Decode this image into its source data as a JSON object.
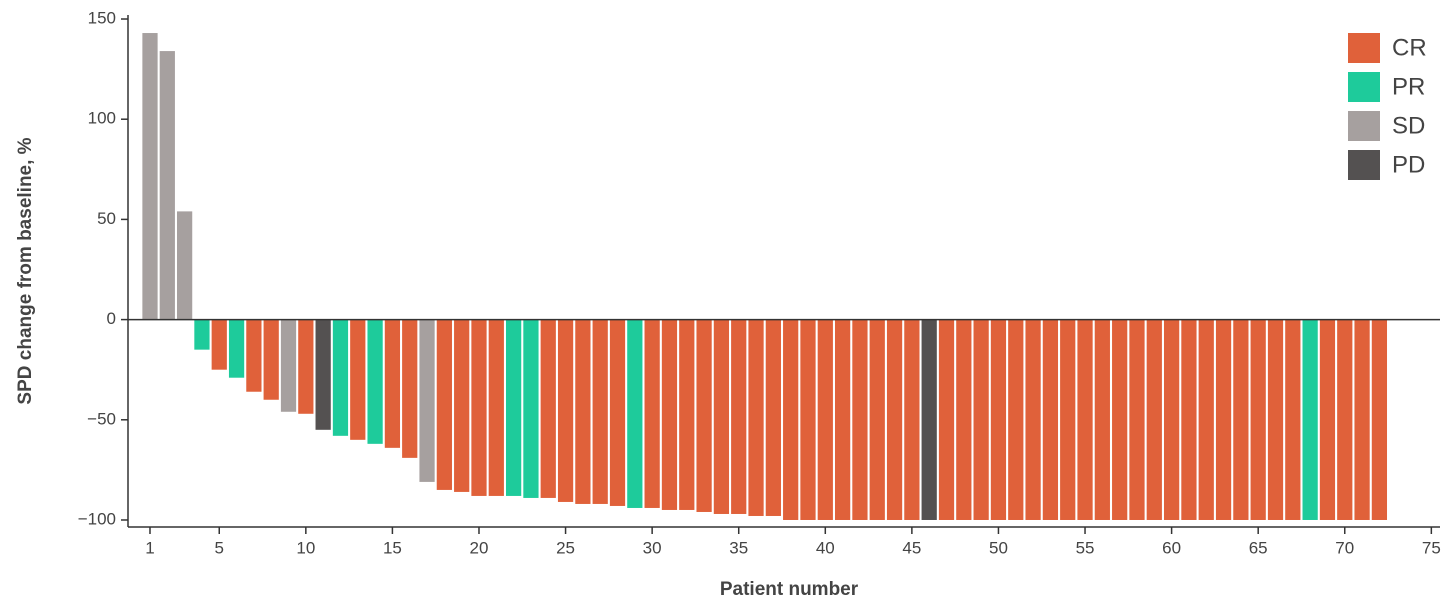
{
  "chart_data": {
    "type": "bar",
    "x_label": "Patient number",
    "y_label": "SPD change from baseline, %",
    "xlim": [
      -0.27,
      75.5
    ],
    "xticks": [
      1,
      5,
      10,
      15,
      20,
      25,
      30,
      35,
      40,
      45,
      50,
      55,
      60,
      65,
      70,
      75
    ],
    "ylim": [
      -103.5,
      152
    ],
    "yticks": [
      150,
      100,
      50,
      0,
      {
        "value": -50,
        "label": "−50"
      },
      {
        "value": -100,
        "label": "−100"
      }
    ],
    "grid": false,
    "legend": "top-right",
    "series": [
      {
        "name": "CR",
        "color": "#e0613a",
        "x": [
          5,
          7,
          8,
          10,
          13,
          15,
          16,
          18,
          19,
          20,
          21,
          24,
          25,
          26,
          27,
          28,
          30,
          31,
          32,
          33,
          34,
          35,
          36,
          37,
          38,
          39,
          40,
          41,
          42,
          43,
          44,
          45,
          47,
          48,
          49,
          50,
          51,
          52,
          53,
          54,
          55,
          56,
          57,
          58,
          59,
          60,
          61,
          62,
          63,
          64,
          65,
          66,
          67,
          69,
          70,
          71,
          72
        ],
        "values": [
          -25,
          -36,
          -40,
          -47,
          -60,
          -64,
          -69,
          -85,
          -86,
          -88,
          -88,
          -89,
          -91,
          -92,
          -92,
          -93,
          -94,
          -95,
          -95,
          -96,
          -97,
          -97,
          -98,
          -98,
          -100,
          -100,
          -100,
          -100,
          -100,
          -100,
          -100,
          -100,
          -100,
          -100,
          -100,
          -100,
          -100,
          -100,
          -100,
          -100,
          -100,
          -100,
          -100,
          -100,
          -100,
          -100,
          -100,
          -100,
          -100,
          -100,
          -100,
          -100,
          -100,
          -100,
          -100,
          -100,
          -100
        ]
      },
      {
        "name": "PR",
        "color": "#1ecb9b",
        "x": [
          4,
          6,
          12,
          14,
          22,
          23,
          29,
          68
        ],
        "values": [
          -15,
          -29,
          -58,
          -62,
          -88,
          -89,
          -94,
          -100
        ]
      },
      {
        "name": "SD",
        "color": "#a6a09f",
        "x": [
          1,
          2,
          3,
          9,
          17
        ],
        "values": [
          143,
          134,
          54,
          -46,
          -81
        ]
      },
      {
        "name": "PD",
        "color": "#545151",
        "x": [
          11,
          46
        ],
        "values": [
          -55,
          -100
        ]
      }
    ]
  }
}
